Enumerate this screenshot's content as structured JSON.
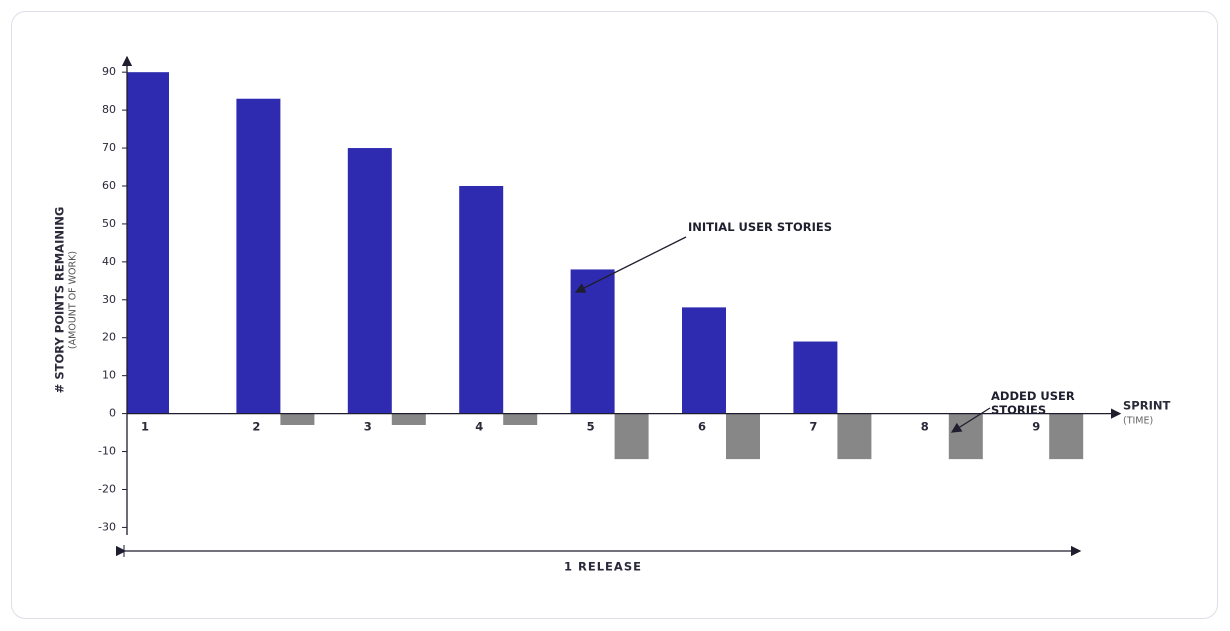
{
  "chart_data": {
    "type": "bar",
    "categories": [
      "1",
      "2",
      "3",
      "4",
      "5",
      "6",
      "7",
      "8",
      "9"
    ],
    "series": [
      {
        "name": "INITIAL USER STORIES",
        "color": "#2e2bb0",
        "values": [
          90,
          83,
          70,
          60,
          38,
          28,
          19,
          0,
          0
        ]
      },
      {
        "name": "ADDED USER STORIES",
        "color": "#878787",
        "values": [
          0,
          -3,
          -3,
          -3,
          -12,
          -12,
          -12,
          -12,
          -12
        ]
      }
    ],
    "y_label": "# STORY POINTS REMAINING",
    "y_sublabel": "(AMOUNT OF WORK)",
    "x_label": "SPRINT",
    "x_sublabel": "(TIME)",
    "annotation": "1 RELEASE",
    "ylim": [
      -32,
      94
    ],
    "yticks": [
      -30,
      -20,
      -10,
      0,
      10,
      20,
      30,
      40,
      50,
      60,
      70,
      80,
      90
    ]
  }
}
